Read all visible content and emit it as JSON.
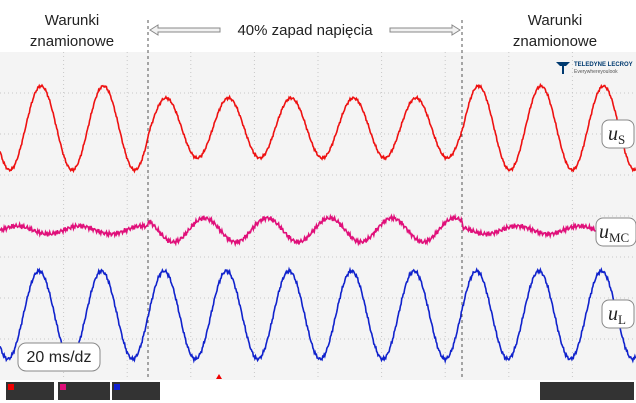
{
  "header": {
    "left": [
      "Warunki",
      "znamionowe"
    ],
    "center": "40% zapad napięcia",
    "right": [
      "Warunki",
      "znamionowe"
    ]
  },
  "logo": {
    "brand": "TELEDYNE LECROY",
    "tagline": "Everywhereyoulook"
  },
  "labels": {
    "us": {
      "symbol": "u",
      "sub": "S"
    },
    "umc": {
      "symbol": "u",
      "sub": "MC"
    },
    "ul": {
      "symbol": "u",
      "sub": "L"
    }
  },
  "timebase": "20 ms/dz"
}
